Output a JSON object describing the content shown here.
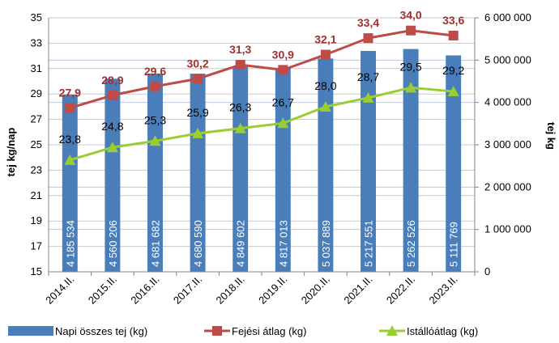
{
  "chart_data": {
    "type": "bar+line",
    "categories": [
      "2014.II.",
      "2015.II.",
      "2016.II.",
      "2017.II.",
      "2018.II.",
      "2019.II.",
      "2020.II.",
      "2021.II.",
      "2022.II.",
      "2023.II."
    ],
    "series": [
      {
        "name": "Napi összes tej (kg)",
        "type": "bar",
        "axis": "right",
        "color": "#4a7ebb",
        "values": [
          4185534,
          4560206,
          4681682,
          4680590,
          4849602,
          4817013,
          5037889,
          5217551,
          5262526,
          5111769
        ],
        "labels": [
          "4 185 534",
          "4 560 206",
          "4 681 682",
          "4 680 590",
          "4 849 602",
          "4 817 013",
          "5 037 889",
          "5 217 551",
          "5 262 526",
          "5 111 769"
        ]
      },
      {
        "name": "Fejési átlag (kg)",
        "type": "line",
        "axis": "left",
        "color": "#be4b48",
        "label_color": "#a0302f",
        "marker": "square",
        "values": [
          27.9,
          28.9,
          29.6,
          30.2,
          31.3,
          30.9,
          32.1,
          33.4,
          34.0,
          33.6
        ],
        "labels": [
          "27,9",
          "28,9",
          "29,6",
          "30,2",
          "31,3",
          "30,9",
          "32,1",
          "33,4",
          "34,0",
          "33,6"
        ]
      },
      {
        "name": "Istállóátlag (kg)",
        "type": "line",
        "axis": "left",
        "color": "#9acd32",
        "marker": "triangle",
        "values": [
          23.8,
          24.8,
          25.3,
          25.9,
          26.3,
          26.7,
          28.0,
          28.7,
          29.5,
          29.2
        ],
        "labels": [
          "23,8",
          "24,8",
          "25,3",
          "25,9",
          "26,3",
          "26,7",
          "28,0",
          "28,7",
          "29,5",
          "29,2"
        ]
      }
    ],
    "y_left": {
      "label": "tej kg/nap",
      "min": 15,
      "max": 35,
      "ticks": [
        15,
        17,
        19,
        21,
        23,
        25,
        27,
        29,
        31,
        33,
        35
      ],
      "tick_labels": [
        "15",
        "17",
        "19",
        "21",
        "23",
        "25",
        "27",
        "29",
        "31",
        "33",
        "35"
      ]
    },
    "y_right": {
      "label": "tej kg",
      "min": 0,
      "max": 6000000,
      "ticks": [
        0,
        1000000,
        2000000,
        3000000,
        4000000,
        5000000,
        6000000
      ],
      "tick_labels": [
        "0",
        "1 000 000",
        "2 000 000",
        "3 000 000",
        "4 000 000",
        "5 000 000",
        "6 000 000"
      ]
    },
    "grid": true,
    "legend_position": "bottom"
  }
}
